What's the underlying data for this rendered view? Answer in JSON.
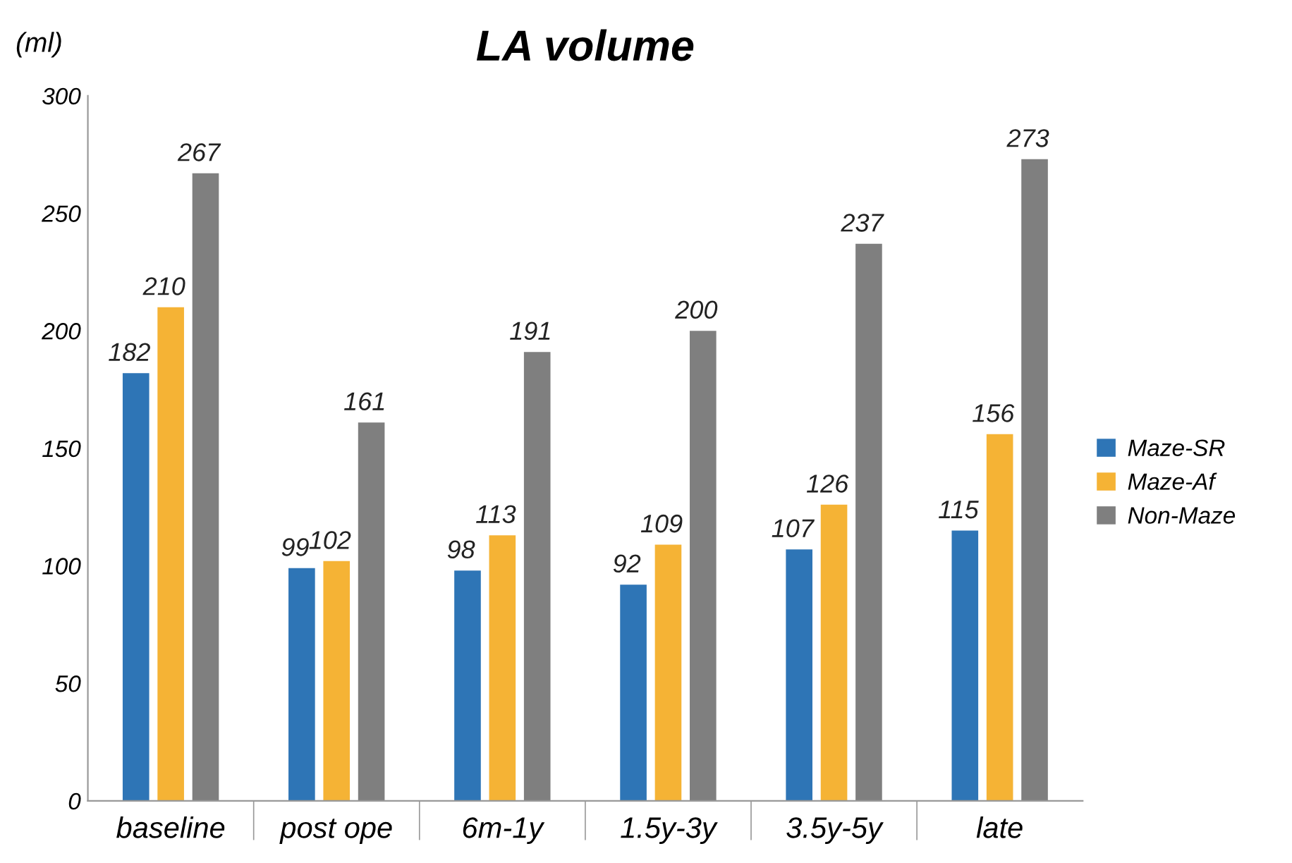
{
  "chart_data": {
    "type": "bar",
    "title": "LA volume",
    "ylabel": "(ml)",
    "categories": [
      "baseline",
      "post ope",
      "6m-1y",
      "1.5y-3y",
      "3.5y-5y",
      "late"
    ],
    "series": [
      {
        "name": "Maze-SR",
        "color": "#2e75b6",
        "values": [
          182,
          99,
          98,
          92,
          107,
          115
        ]
      },
      {
        "name": "Maze-Af",
        "color": "#f5b335",
        "values": [
          210,
          102,
          113,
          109,
          126,
          156
        ]
      },
      {
        "name": "Non-Maze",
        "color": "#7f7f7f",
        "values": [
          267,
          161,
          191,
          200,
          237,
          273
        ]
      }
    ],
    "ylim": [
      0,
      300
    ],
    "yticks": [
      0,
      50,
      100,
      150,
      200,
      250,
      300
    ],
    "grid": false,
    "legend": "right",
    "data_labels": true
  }
}
